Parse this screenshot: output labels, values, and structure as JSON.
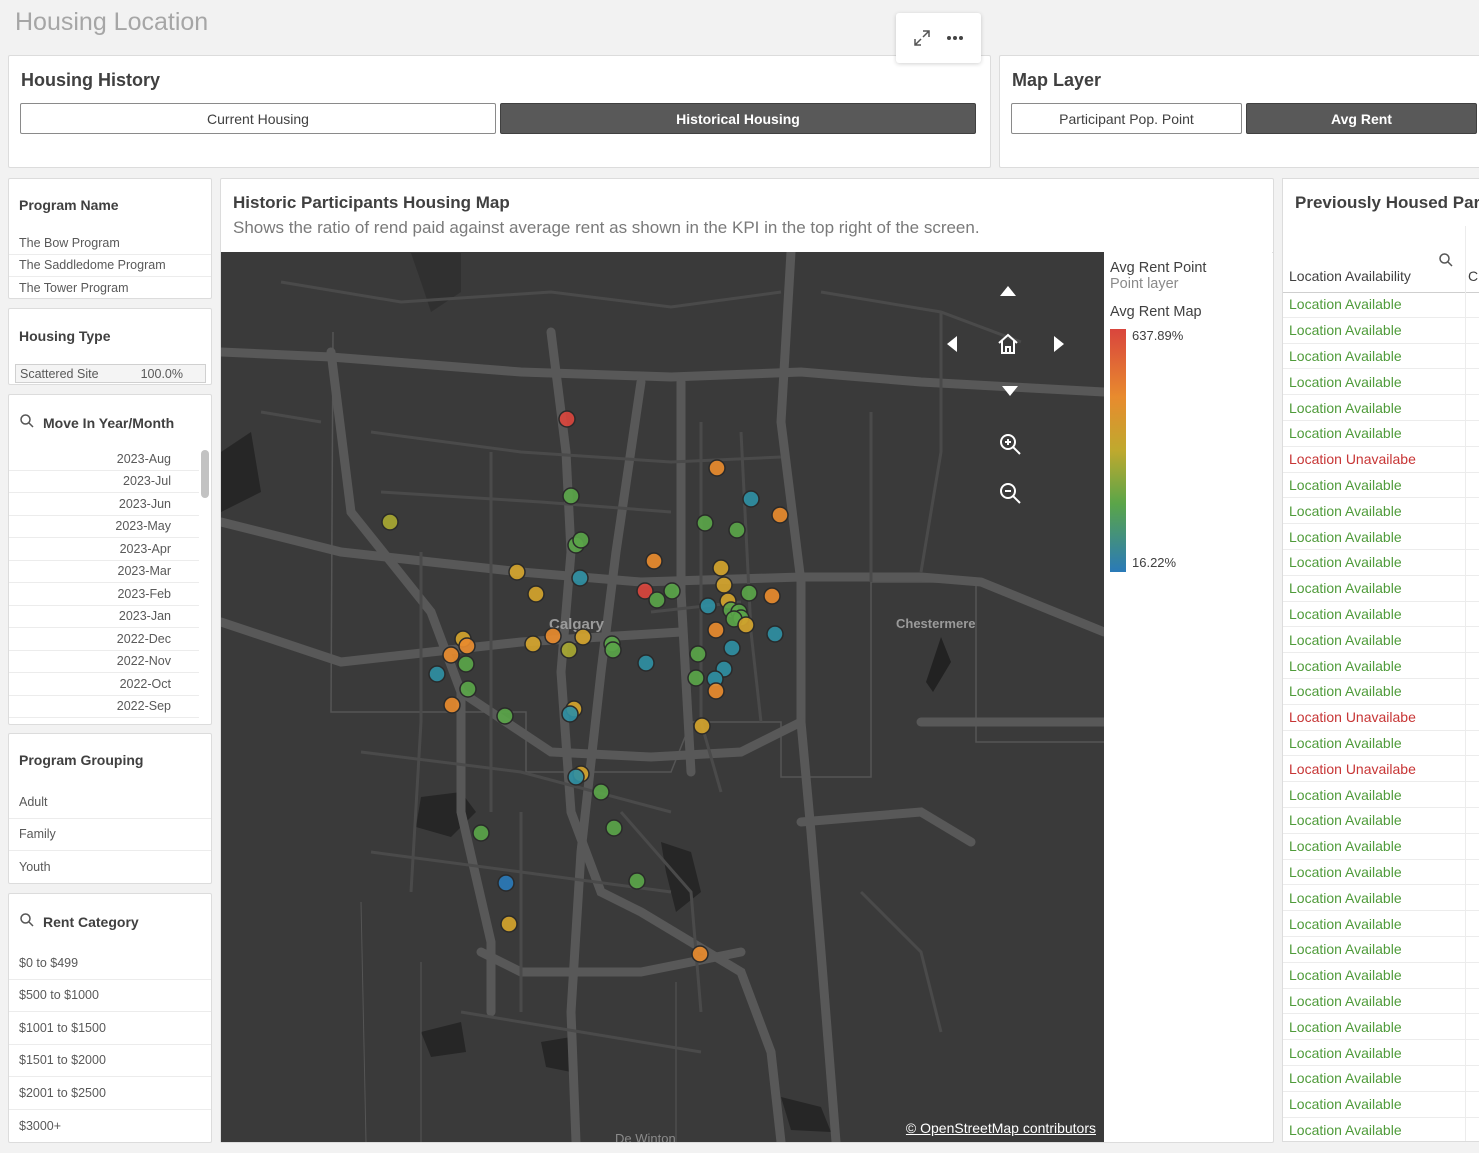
{
  "sheet": {
    "title": "Housing Location"
  },
  "toolbar": {
    "expand_icon": "expand-icon",
    "more_icon": "more-icon"
  },
  "housing_history": {
    "title": "Housing History",
    "buttons": [
      {
        "label": "Current Housing",
        "active": false
      },
      {
        "label": "Historical Housing",
        "active": true
      }
    ]
  },
  "map_layer": {
    "title": "Map Layer",
    "buttons": [
      {
        "label": "Participant Pop. Point",
        "active": false
      },
      {
        "label": "Avg Rent",
        "active": true
      }
    ]
  },
  "filters": {
    "program_name": {
      "title": "Program Name",
      "items": [
        "The Bow Program",
        "The Saddledome Program",
        "The Tower Program"
      ]
    },
    "housing_type": {
      "title": "Housing Type",
      "items": [
        {
          "label": "Scattered Site",
          "value": "100.0%"
        }
      ]
    },
    "move_in": {
      "title": "Move In Year/Month",
      "items": [
        "2023-Aug",
        "2023-Jul",
        "2023-Jun",
        "2023-May",
        "2023-Apr",
        "2023-Mar",
        "2023-Feb",
        "2023-Jan",
        "2022-Dec",
        "2022-Nov",
        "2022-Oct",
        "2022-Sep"
      ]
    },
    "program_grouping": {
      "title": "Program Grouping",
      "items": [
        "Adult",
        "Family",
        "Youth"
      ]
    },
    "rent_category": {
      "title": "Rent Category",
      "items": [
        "$0 to $499",
        "$500 to $1000",
        "$1001 to $1500",
        "$1501 to $2000",
        "$2001 to $2500",
        "$3000+"
      ]
    }
  },
  "map": {
    "title": "Historic Participants Housing Map",
    "subtitle": "Shows the ratio of rend paid against average rent as shown in the KPI in the top right of the screen.",
    "places": {
      "city": "Calgary",
      "town1": "Chestermere",
      "town2": "De Winton"
    },
    "attribution": "© OpenStreetMap contributors",
    "legend": {
      "layer_name": "Avg Rent Point",
      "layer_type": "Point layer",
      "scale_title": "Avg Rent Map",
      "max_label": "637.89%",
      "min_label": "16.22%"
    },
    "colors": {
      "red": "#d9453d",
      "orange": "#e88b2e",
      "amber": "#d4a42c",
      "olive": "#a8a832",
      "green": "#5aa549",
      "teal": "#2f8fa3",
      "blue": "#2a7ab8"
    }
  },
  "table": {
    "title": "Previously Housed Participants",
    "column": "Location Availability",
    "rows": [
      "Location Available",
      "Location Available",
      "Location Available",
      "Location Available",
      "Location Available",
      "Location Available",
      "Location Unavailabe",
      "Location Available",
      "Location Available",
      "Location Available",
      "Location Available",
      "Location Available",
      "Location Available",
      "Location Available",
      "Location Available",
      "Location Available",
      "Location Unavailabe",
      "Location Available",
      "Location Unavailabe",
      "Location Available",
      "Location Available",
      "Location Available",
      "Location Available",
      "Location Available",
      "Location Available",
      "Location Available",
      "Location Available",
      "Location Available",
      "Location Available",
      "Location Available",
      "Location Available",
      "Location Available",
      "Location Available"
    ]
  }
}
